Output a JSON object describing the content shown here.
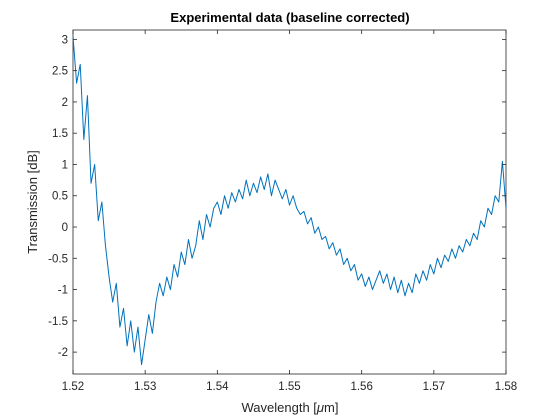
{
  "chart_data": {
    "type": "line",
    "title": "Experimental data (baseline corrected)",
    "xlabel_prefix": "Wavelength [",
    "xlabel_unit": "μ",
    "xlabel_suffix": "m]",
    "ylabel": "Transmission [dB]",
    "xlim": [
      1.52,
      1.58
    ],
    "ylim": [
      -2.35,
      3.15
    ],
    "xticks": [
      1.52,
      1.53,
      1.54,
      1.55,
      1.56,
      1.57,
      1.58
    ],
    "xtick_labels": [
      "1.52",
      "1.53",
      "1.54",
      "1.55",
      "1.56",
      "1.57",
      "1.58"
    ],
    "yticks": [
      -2,
      -1.5,
      -1,
      -0.5,
      0,
      0.5,
      1,
      1.5,
      2,
      2.5,
      3
    ],
    "ytick_labels": [
      "-2",
      "-1.5",
      "-1",
      "-0.5",
      "0",
      "0.5",
      "1",
      "1.5",
      "2",
      "2.5",
      "3"
    ],
    "grid": false,
    "legend": "none",
    "series": [
      {
        "color": "#0072BD",
        "x": [
          1.52,
          1.5205,
          1.521,
          1.5215,
          1.522,
          1.5225,
          1.523,
          1.5235,
          1.524,
          1.5245,
          1.525,
          1.5255,
          1.526,
          1.5265,
          1.527,
          1.5275,
          1.528,
          1.5285,
          1.529,
          1.5295,
          1.53,
          1.5305,
          1.531,
          1.5315,
          1.532,
          1.5325,
          1.533,
          1.5335,
          1.534,
          1.5345,
          1.535,
          1.5355,
          1.536,
          1.5365,
          1.537,
          1.5375,
          1.538,
          1.5385,
          1.539,
          1.5395,
          1.54,
          1.5405,
          1.541,
          1.5415,
          1.542,
          1.5425,
          1.543,
          1.5435,
          1.544,
          1.5445,
          1.545,
          1.5455,
          1.546,
          1.5465,
          1.547,
          1.5475,
          1.548,
          1.5485,
          1.549,
          1.5495,
          1.55,
          1.5505,
          1.551,
          1.5515,
          1.552,
          1.5525,
          1.553,
          1.5535,
          1.554,
          1.5545,
          1.555,
          1.5555,
          1.556,
          1.5565,
          1.557,
          1.5575,
          1.558,
          1.5585,
          1.559,
          1.5595,
          1.56,
          1.5605,
          1.561,
          1.5615,
          1.562,
          1.5625,
          1.563,
          1.5635,
          1.564,
          1.5645,
          1.565,
          1.5655,
          1.566,
          1.5665,
          1.567,
          1.5675,
          1.568,
          1.5685,
          1.569,
          1.5695,
          1.57,
          1.5705,
          1.571,
          1.5715,
          1.572,
          1.5725,
          1.573,
          1.5735,
          1.574,
          1.5745,
          1.575,
          1.5755,
          1.576,
          1.5765,
          1.577,
          1.5775,
          1.578,
          1.5785,
          1.579,
          1.5795,
          1.58
        ],
        "y": [
          3.05,
          2.3,
          2.6,
          1.4,
          2.1,
          0.7,
          1.0,
          0.1,
          0.4,
          -0.3,
          -0.8,
          -1.2,
          -0.9,
          -1.6,
          -1.3,
          -1.9,
          -1.5,
          -2.0,
          -1.6,
          -2.2,
          -1.8,
          -1.4,
          -1.7,
          -1.2,
          -0.9,
          -1.1,
          -0.8,
          -1.0,
          -0.6,
          -0.8,
          -0.4,
          -0.6,
          -0.2,
          -0.5,
          -0.3,
          0.1,
          -0.2,
          0.2,
          0.0,
          0.3,
          0.4,
          0.2,
          0.5,
          0.3,
          0.55,
          0.4,
          0.6,
          0.45,
          0.75,
          0.5,
          0.7,
          0.55,
          0.8,
          0.6,
          0.85,
          0.5,
          0.75,
          0.6,
          0.45,
          0.6,
          0.35,
          0.5,
          0.3,
          0.2,
          0.25,
          0.05,
          0.15,
          -0.1,
          0.0,
          -0.2,
          -0.15,
          -0.35,
          -0.25,
          -0.45,
          -0.35,
          -0.6,
          -0.5,
          -0.7,
          -0.6,
          -0.85,
          -0.75,
          -0.95,
          -0.8,
          -1.0,
          -0.85,
          -0.7,
          -0.9,
          -0.75,
          -1.0,
          -0.8,
          -1.05,
          -0.85,
          -1.1,
          -0.9,
          -1.05,
          -0.75,
          -0.9,
          -0.7,
          -0.85,
          -0.6,
          -0.75,
          -0.5,
          -0.65,
          -0.45,
          -0.55,
          -0.35,
          -0.5,
          -0.3,
          -0.4,
          -0.2,
          -0.3,
          -0.1,
          -0.2,
          0.1,
          0.0,
          0.3,
          0.2,
          0.5,
          0.4,
          1.05,
          0.3
        ]
      }
    ]
  }
}
